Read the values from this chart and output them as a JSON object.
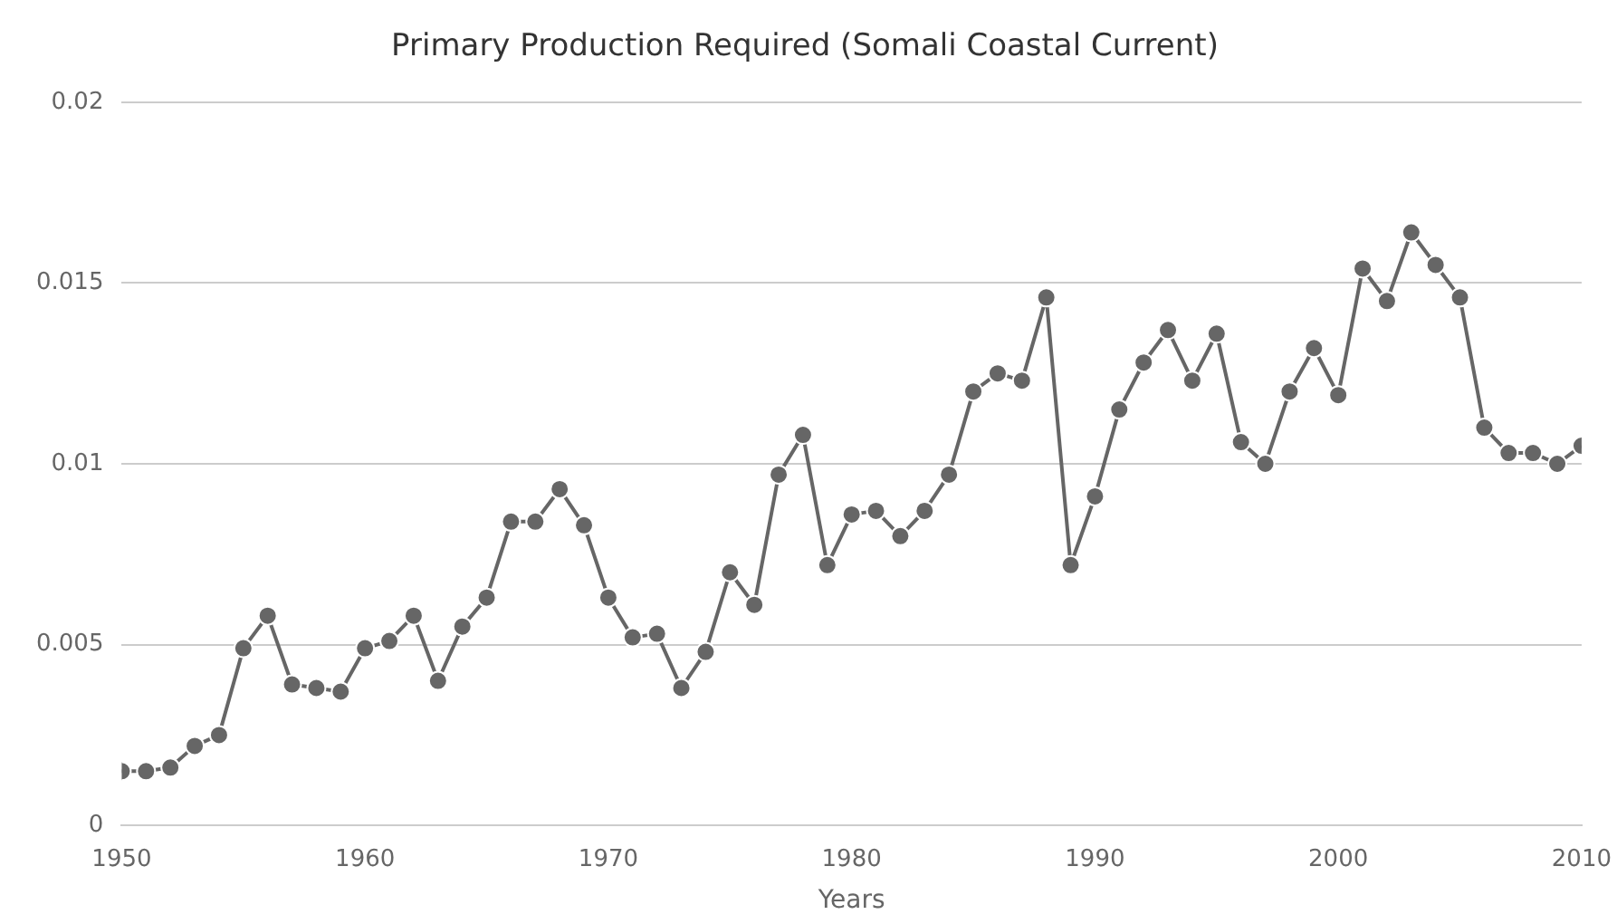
{
  "chart_data": {
    "type": "line",
    "title": "Primary Production Required (Somali Coastal Current)",
    "xlabel": "Years",
    "x": [
      1950,
      1951,
      1952,
      1953,
      1954,
      1955,
      1956,
      1957,
      1958,
      1959,
      1960,
      1961,
      1962,
      1963,
      1964,
      1965,
      1966,
      1967,
      1968,
      1969,
      1970,
      1971,
      1972,
      1973,
      1974,
      1975,
      1976,
      1977,
      1978,
      1979,
      1980,
      1981,
      1982,
      1983,
      1984,
      1985,
      1986,
      1987,
      1988,
      1989,
      1990,
      1991,
      1992,
      1993,
      1994,
      1995,
      1996,
      1997,
      1998,
      1999,
      2000,
      2001,
      2002,
      2003,
      2004,
      2005,
      2006,
      2007,
      2008,
      2009,
      2010
    ],
    "series": [
      {
        "color": "#666666",
        "values": [
          0.0015,
          0.0015,
          0.0016,
          0.0022,
          0.0025,
          0.0049,
          0.0058,
          0.0039,
          0.0038,
          0.0037,
          0.0049,
          0.0051,
          0.0058,
          0.004,
          0.0055,
          0.0063,
          0.0084,
          0.0084,
          0.0093,
          0.0083,
          0.0063,
          0.0052,
          0.0053,
          0.0038,
          0.0048,
          0.007,
          0.0061,
          0.0097,
          0.0108,
          0.0072,
          0.0086,
          0.0087,
          0.008,
          0.0087,
          0.0097,
          0.012,
          0.0125,
          0.0123,
          0.0146,
          0.0072,
          0.0091,
          0.0115,
          0.0128,
          0.0137,
          0.0123,
          0.0136,
          0.0106,
          0.01,
          0.012,
          0.0132,
          0.0119,
          0.0154,
          0.0145,
          0.0164,
          0.0155,
          0.0146,
          0.011,
          0.0103,
          0.0103,
          0.01,
          0.0105
        ]
      }
    ],
    "xlim": [
      1950,
      2010
    ],
    "xticks": [
      1950,
      1960,
      1970,
      1980,
      1990,
      2000,
      2010
    ],
    "ylim": [
      0,
      0.02
    ],
    "yticks": [
      0,
      0.005,
      0.01,
      0.015,
      0.02
    ],
    "grid": "y",
    "legend": false,
    "marker": "circle",
    "line_style": "solid"
  }
}
